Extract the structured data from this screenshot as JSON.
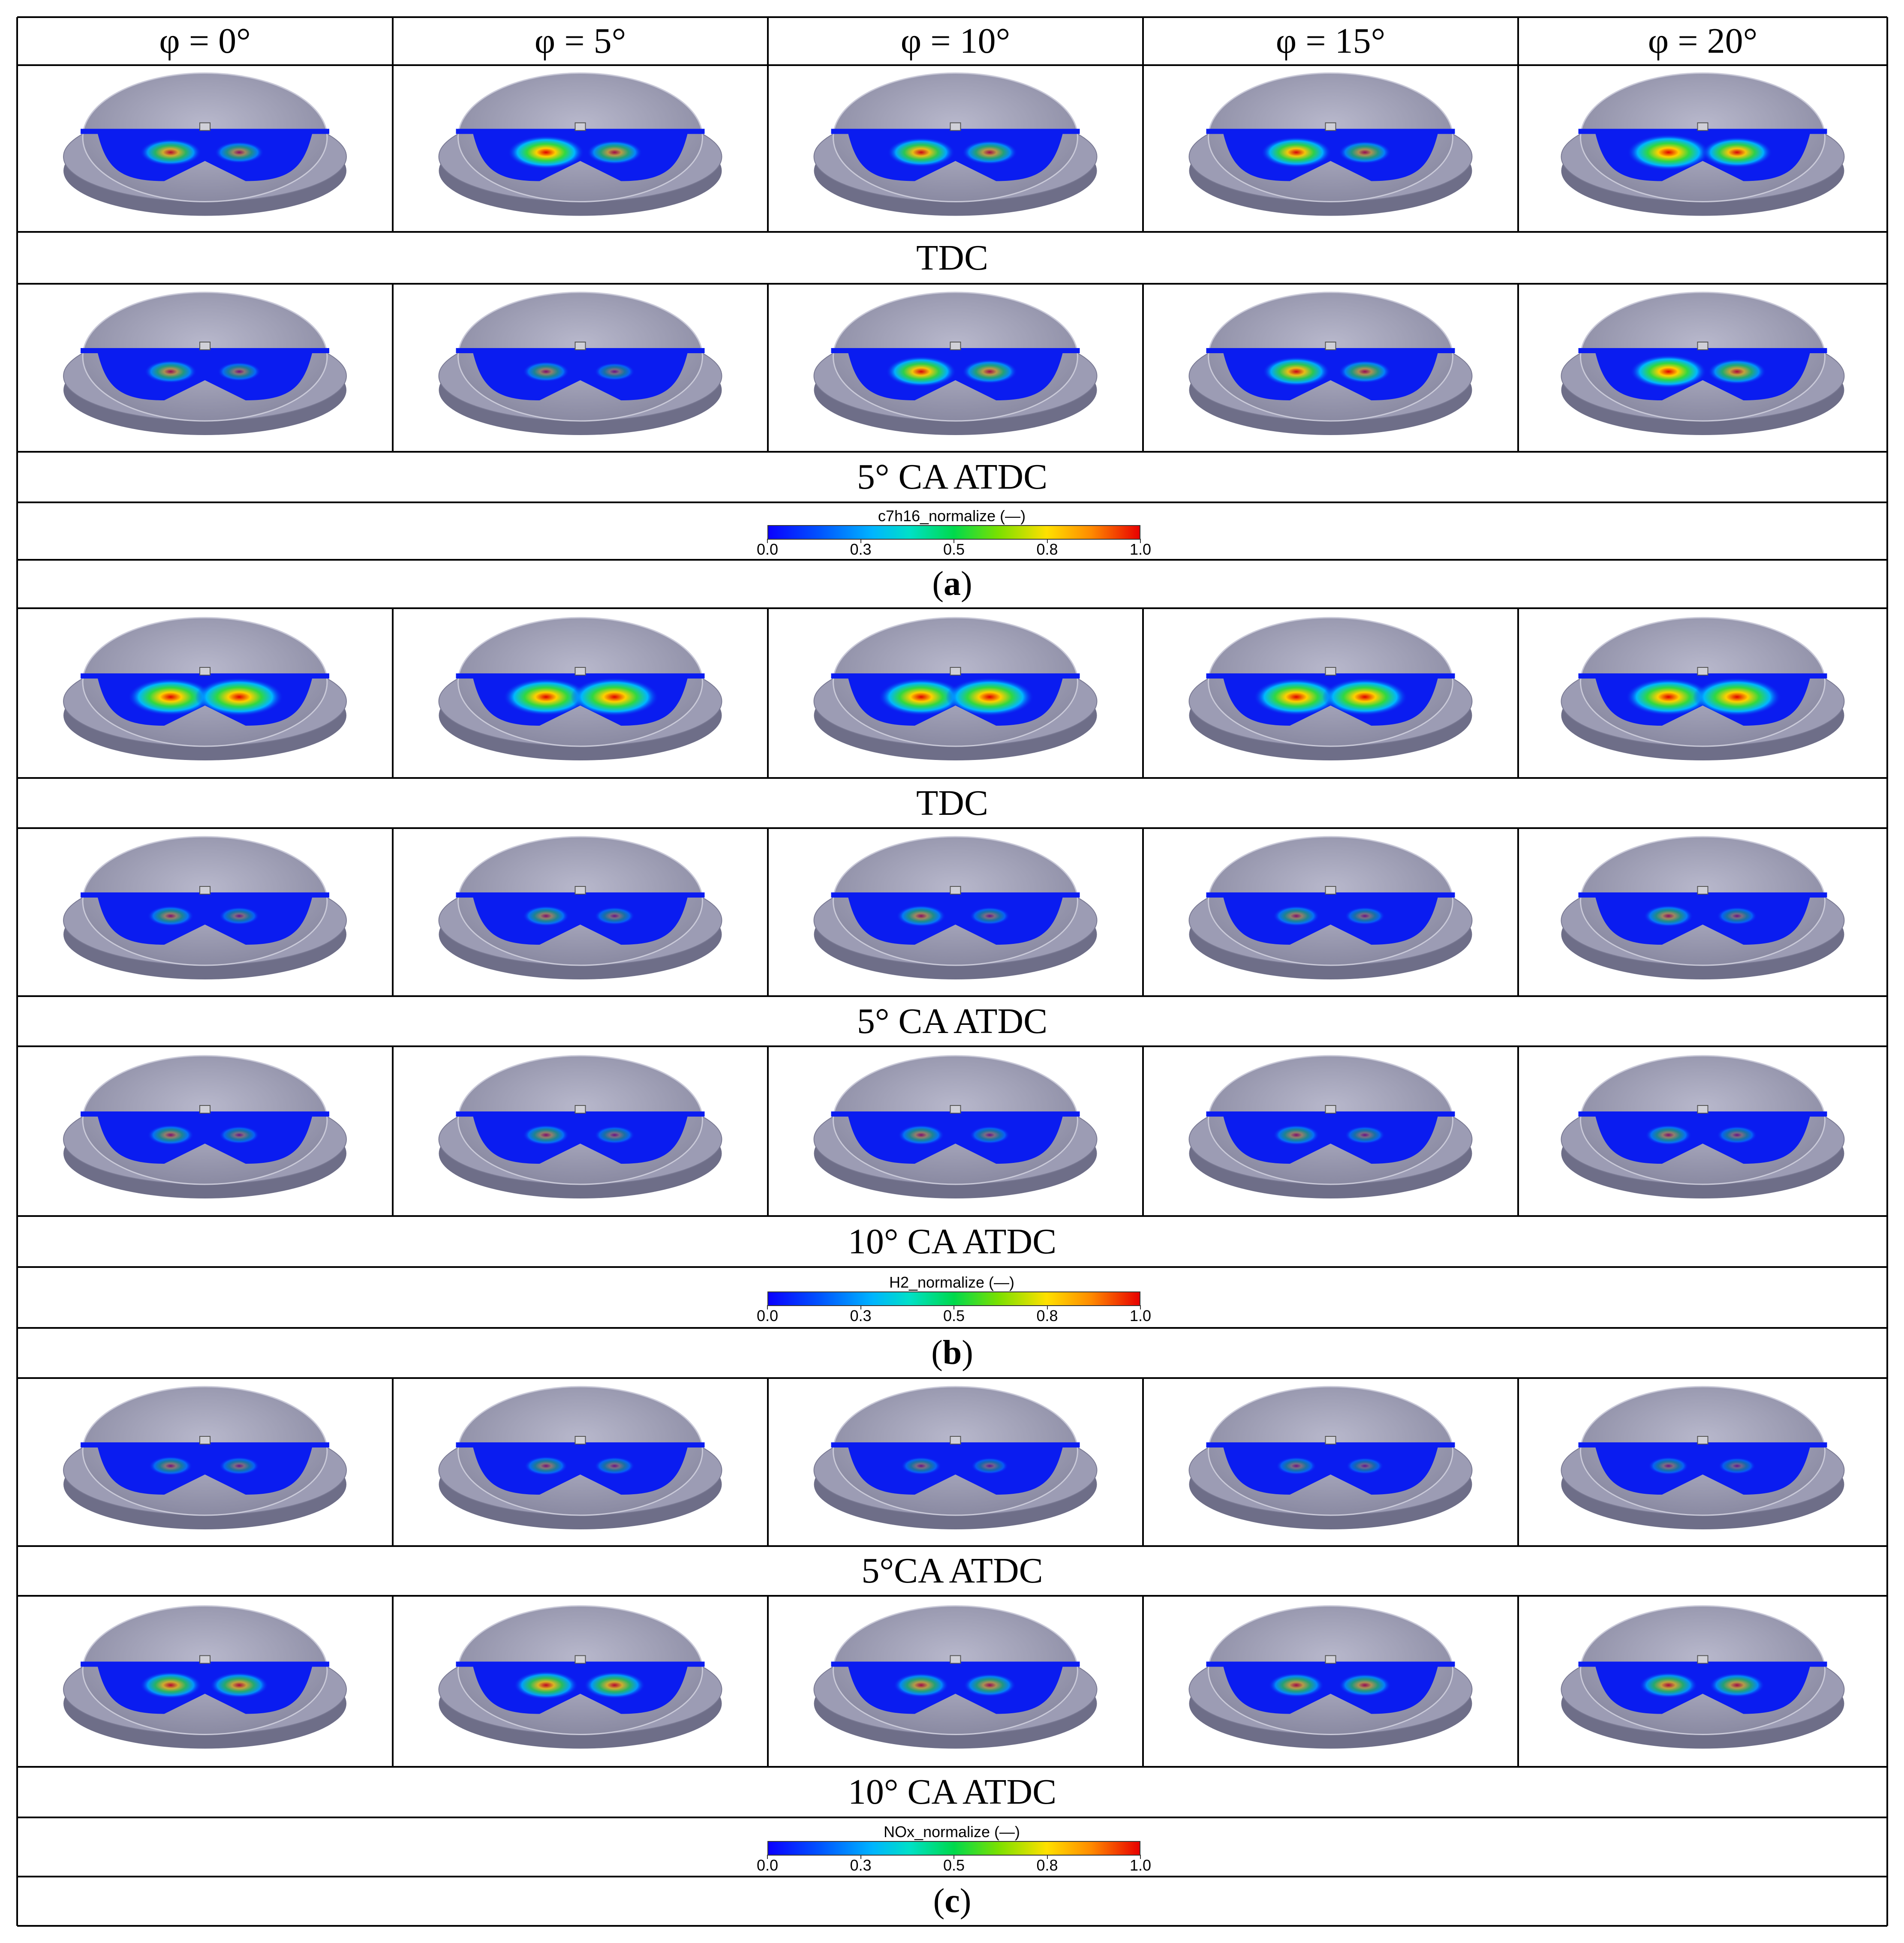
{
  "headers": [
    "φ = 0°",
    "φ = 5°",
    "φ = 10°",
    "φ = 15°",
    "φ = 20°"
  ],
  "panels": [
    {
      "id": "a",
      "stage_labels": [
        "TDC",
        "5° CA ATDC"
      ],
      "colorbar": {
        "title": "c7h16_normalize (—)",
        "ticks": [
          "0.0",
          "0.3",
          "0.5",
          "0.8",
          "1.0"
        ]
      },
      "panel_label_open": "(",
      "panel_label_letter": "a",
      "panel_label_close": ")"
    },
    {
      "id": "b",
      "stage_labels": [
        "TDC",
        "5° CA ATDC",
        "10° CA ATDC"
      ],
      "colorbar": {
        "title": "H2_normalize (—)",
        "ticks": [
          "0.0",
          "0.3",
          "0.5",
          "0.8",
          "1.0"
        ]
      },
      "panel_label_open": "(",
      "panel_label_letter": "b",
      "panel_label_close": ")"
    },
    {
      "id": "c",
      "stage_labels": [
        "5°CA ATDC",
        "10° CA ATDC"
      ],
      "colorbar": {
        "title": "NOx_normalize (—)",
        "ticks": [
          "0.0",
          "0.3",
          "0.5",
          "0.8",
          "1.0"
        ]
      },
      "panel_label_open": "(",
      "panel_label_letter": "c",
      "panel_label_close": ")"
    }
  ],
  "colors": {
    "piston": "#9c9cb4",
    "piston_dark": "#6e6e88",
    "field_base": "#0a1cf0",
    "grid_line": "#000000"
  },
  "contour_hotspots": [
    [
      [
        0.45,
        0.25
      ],
      [
        0.7,
        0.35
      ],
      [
        0.55,
        0.35
      ],
      [
        0.6,
        0.3
      ],
      [
        0.8,
        0.6
      ]
    ],
    [
      [
        0.3,
        0.15
      ],
      [
        0.2,
        0.1
      ],
      [
        0.6,
        0.35
      ],
      [
        0.55,
        0.3
      ],
      [
        0.7,
        0.4
      ]
    ],
    [
      [
        0.85,
        0.9
      ],
      [
        0.85,
        0.9
      ],
      [
        0.85,
        0.9
      ],
      [
        0.85,
        0.85
      ],
      [
        0.85,
        0.9
      ]
    ],
    [
      [
        0.2,
        0.1
      ],
      [
        0.2,
        0.1
      ],
      [
        0.25,
        0.1
      ],
      [
        0.2,
        0.1
      ],
      [
        0.25,
        0.1
      ]
    ],
    [
      [
        0.2,
        0.1
      ],
      [
        0.2,
        0.1
      ],
      [
        0.2,
        0.1
      ],
      [
        0.2,
        0.1
      ],
      [
        0.2,
        0.1
      ]
    ],
    [
      [
        0.15,
        0.1
      ],
      [
        0.15,
        0.1
      ],
      [
        0.1,
        0.05
      ],
      [
        0.1,
        0.05
      ],
      [
        0.1,
        0.05
      ]
    ],
    [
      [
        0.45,
        0.4
      ],
      [
        0.5,
        0.45
      ],
      [
        0.35,
        0.3
      ],
      [
        0.35,
        0.3
      ],
      [
        0.4,
        0.35
      ]
    ]
  ]
}
